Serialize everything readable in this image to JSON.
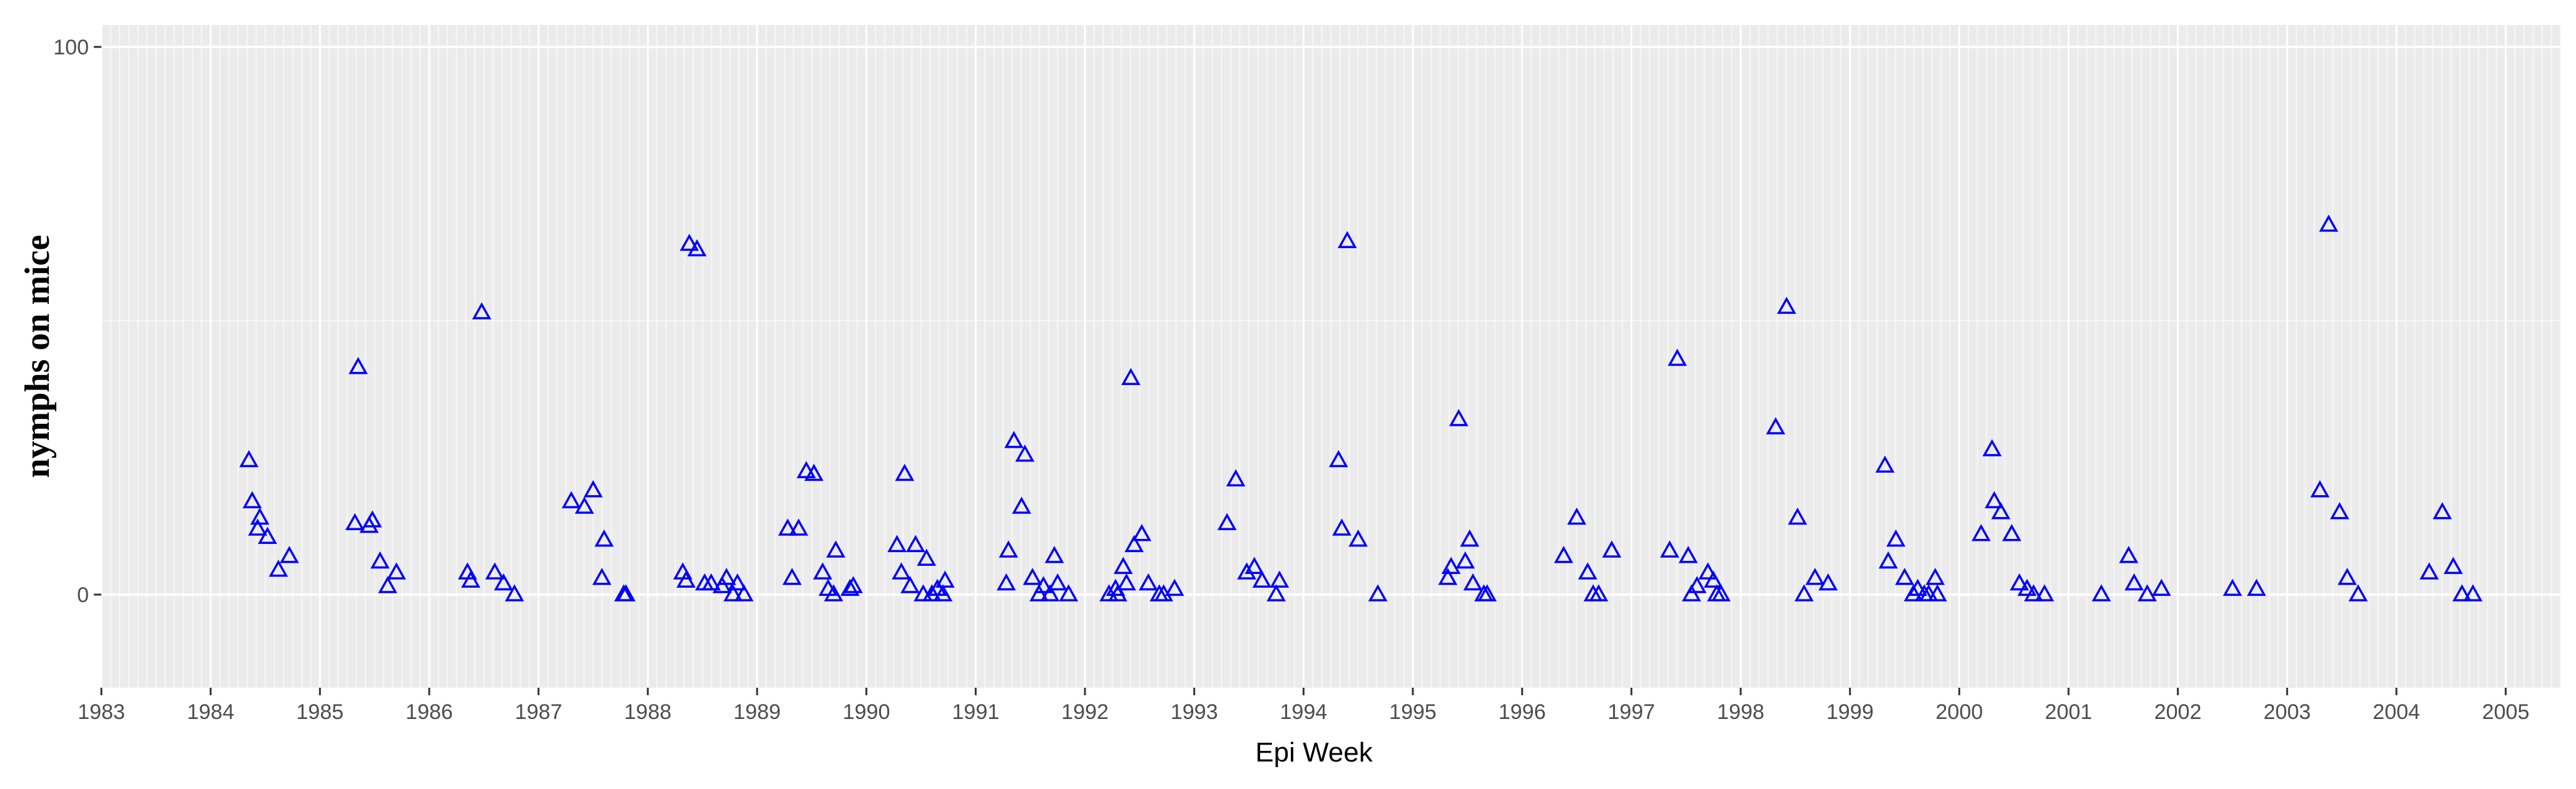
{
  "chart_data": {
    "type": "scatter",
    "xlabel": "Epi Week",
    "ylabel": "nymphs on mice",
    "xlim": [
      1983,
      2005.5
    ],
    "ylim": [
      -17,
      104
    ],
    "x_ticks": [
      "1983",
      "1984",
      "1985",
      "1986",
      "1987",
      "1988",
      "1989",
      "1990",
      "1991",
      "1992",
      "1993",
      "1994",
      "1995",
      "1996",
      "1997",
      "1998",
      "1999",
      "2000",
      "2001",
      "2002",
      "2003",
      "2004",
      "2005"
    ],
    "y_ticks": [
      0,
      100
    ],
    "grid": true,
    "marker": "triangle-open",
    "colors": {
      "panel": "#ebebeb",
      "grid": "#ffffff",
      "points": "#0000ff"
    },
    "points": [
      [
        1984.35,
        24.5
      ],
      [
        1984.38,
        17
      ],
      [
        1984.45,
        14
      ],
      [
        1984.43,
        12
      ],
      [
        1984.52,
        10.5
      ],
      [
        1984.62,
        4.5
      ],
      [
        1984.72,
        7
      ],
      [
        1985.32,
        13
      ],
      [
        1985.35,
        41.5
      ],
      [
        1985.45,
        12.5
      ],
      [
        1985.48,
        13.5
      ],
      [
        1985.55,
        6
      ],
      [
        1985.62,
        1.5
      ],
      [
        1985.7,
        4
      ],
      [
        1986.35,
        4
      ],
      [
        1986.38,
        2.5
      ],
      [
        1986.48,
        51.5
      ],
      [
        1986.6,
        4
      ],
      [
        1986.68,
        2
      ],
      [
        1986.78,
        0
      ],
      [
        1987.3,
        17
      ],
      [
        1987.42,
        16
      ],
      [
        1987.5,
        19
      ],
      [
        1987.58,
        3
      ],
      [
        1987.6,
        10
      ],
      [
        1987.78,
        0
      ],
      [
        1987.8,
        0
      ],
      [
        1988.32,
        4
      ],
      [
        1988.35,
        2.5
      ],
      [
        1988.38,
        64
      ],
      [
        1988.45,
        63
      ],
      [
        1988.52,
        2
      ],
      [
        1988.58,
        2
      ],
      [
        1988.68,
        1.5
      ],
      [
        1988.72,
        3
      ],
      [
        1988.78,
        0
      ],
      [
        1988.82,
        2
      ],
      [
        1988.88,
        0
      ],
      [
        1989.28,
        12
      ],
      [
        1989.32,
        3
      ],
      [
        1989.38,
        12
      ],
      [
        1989.45,
        22.5
      ],
      [
        1989.52,
        22
      ],
      [
        1989.6,
        4
      ],
      [
        1989.65,
        1
      ],
      [
        1989.7,
        0
      ],
      [
        1989.72,
        8
      ],
      [
        1989.85,
        1
      ],
      [
        1989.88,
        1.5
      ],
      [
        1990.28,
        9
      ],
      [
        1990.32,
        4
      ],
      [
        1990.35,
        22
      ],
      [
        1990.4,
        1.5
      ],
      [
        1990.45,
        9
      ],
      [
        1990.52,
        0
      ],
      [
        1990.55,
        6.5
      ],
      [
        1990.6,
        0
      ],
      [
        1990.65,
        1
      ],
      [
        1990.7,
        0
      ],
      [
        1990.72,
        2.5
      ],
      [
        1991.28,
        2
      ],
      [
        1991.3,
        8
      ],
      [
        1991.35,
        28
      ],
      [
        1991.45,
        25.5
      ],
      [
        1991.42,
        16
      ],
      [
        1991.52,
        3
      ],
      [
        1991.58,
        0
      ],
      [
        1991.62,
        1.5
      ],
      [
        1991.68,
        0
      ],
      [
        1991.72,
        7
      ],
      [
        1991.75,
        2
      ],
      [
        1991.85,
        0
      ],
      [
        1992.22,
        0
      ],
      [
        1992.28,
        1
      ],
      [
        1992.3,
        0
      ],
      [
        1992.35,
        5
      ],
      [
        1992.38,
        2
      ],
      [
        1992.42,
        39.5
      ],
      [
        1992.45,
        9
      ],
      [
        1992.52,
        11
      ],
      [
        1992.58,
        2
      ],
      [
        1992.68,
        0
      ],
      [
        1992.72,
        0
      ],
      [
        1992.82,
        1
      ],
      [
        1993.3,
        13
      ],
      [
        1993.38,
        21
      ],
      [
        1993.48,
        4
      ],
      [
        1993.55,
        5
      ],
      [
        1993.62,
        2.5
      ],
      [
        1993.75,
        0
      ],
      [
        1993.78,
        2.5
      ],
      [
        1994.32,
        24.5
      ],
      [
        1994.35,
        12
      ],
      [
        1994.4,
        64.5
      ],
      [
        1994.5,
        10
      ],
      [
        1994.68,
        0
      ],
      [
        1995.32,
        3
      ],
      [
        1995.35,
        5
      ],
      [
        1995.42,
        32
      ],
      [
        1995.48,
        6
      ],
      [
        1995.52,
        10
      ],
      [
        1995.55,
        2
      ],
      [
        1995.65,
        0
      ],
      [
        1995.68,
        0
      ],
      [
        1996.38,
        7
      ],
      [
        1996.5,
        14
      ],
      [
        1996.6,
        4
      ],
      [
        1996.65,
        0
      ],
      [
        1996.7,
        0
      ],
      [
        1996.82,
        8
      ],
      [
        1997.35,
        8
      ],
      [
        1997.42,
        43
      ],
      [
        1997.52,
        7
      ],
      [
        1997.55,
        0
      ],
      [
        1997.6,
        1.5
      ],
      [
        1997.7,
        4
      ],
      [
        1997.75,
        2.5
      ],
      [
        1997.78,
        0
      ],
      [
        1997.82,
        0
      ],
      [
        1998.32,
        30.5
      ],
      [
        1998.42,
        52.5
      ],
      [
        1998.52,
        14
      ],
      [
        1998.58,
        0
      ],
      [
        1998.68,
        3
      ],
      [
        1998.8,
        2
      ],
      [
        1999.32,
        23.5
      ],
      [
        1999.35,
        6
      ],
      [
        1999.42,
        10
      ],
      [
        1999.5,
        3
      ],
      [
        1999.58,
        0
      ],
      [
        1999.62,
        1
      ],
      [
        1999.68,
        0
      ],
      [
        1999.72,
        0
      ],
      [
        1999.78,
        3
      ],
      [
        1999.8,
        0
      ],
      [
        2000.2,
        11
      ],
      [
        2000.3,
        26.5
      ],
      [
        2000.32,
        17
      ],
      [
        2000.38,
        15
      ],
      [
        2000.48,
        11
      ],
      [
        2000.55,
        2
      ],
      [
        2000.62,
        1
      ],
      [
        2000.68,
        0
      ],
      [
        2000.78,
        0
      ],
      [
        2001.3,
        0
      ],
      [
        2001.55,
        7
      ],
      [
        2001.6,
        2
      ],
      [
        2001.72,
        0
      ],
      [
        2001.85,
        1
      ],
      [
        2002.5,
        1
      ],
      [
        2002.72,
        1
      ],
      [
        2003.3,
        19
      ],
      [
        2003.38,
        67.5
      ],
      [
        2003.48,
        15
      ],
      [
        2003.55,
        3
      ],
      [
        2003.65,
        0
      ],
      [
        2004.3,
        4
      ],
      [
        2004.42,
        15
      ],
      [
        2004.52,
        5
      ],
      [
        2004.6,
        0
      ],
      [
        2004.7,
        0
      ]
    ]
  }
}
